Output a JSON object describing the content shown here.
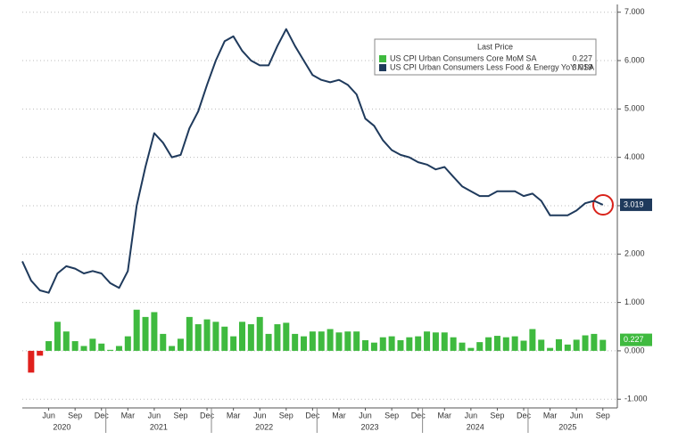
{
  "chart_data": {
    "type": "combo",
    "legend_title": "Last Price",
    "categories": [
      null,
      null,
      null,
      "Jun",
      null,
      null,
      "Sep",
      null,
      null,
      "Dec",
      null,
      null,
      "Mar",
      null,
      null,
      "Jun",
      null,
      null,
      "Sep",
      null,
      null,
      "Dec",
      null,
      null,
      "Mar",
      null,
      null,
      "Jun",
      null,
      null,
      "Sep",
      null,
      null,
      "Dec",
      null,
      null,
      "Mar",
      null,
      null,
      "Jun",
      null,
      null,
      "Sep",
      null,
      null,
      "Dec",
      null,
      null,
      "Mar",
      null,
      null,
      "Jun",
      null,
      null,
      "Sep",
      null,
      null,
      "Dec",
      null,
      null,
      "Mar",
      null,
      null,
      "Jun",
      null,
      null,
      "Sep"
    ],
    "years": [
      "2020",
      "2021",
      "2022",
      "2023",
      "2024",
      "2025"
    ],
    "series": [
      {
        "name": "US CPI Urban Consumers Core MoM SA",
        "type": "bar",
        "color": "#3fba3f",
        "negative_color": "#e0201c",
        "values": [
          null,
          -0.45,
          -0.1,
          0.2,
          0.6,
          0.4,
          0.2,
          0.1,
          0.25,
          0.15,
          0.02,
          0.1,
          0.3,
          0.85,
          0.7,
          0.8,
          0.35,
          0.1,
          0.25,
          0.7,
          0.55,
          0.65,
          0.6,
          0.5,
          0.3,
          0.6,
          0.55,
          0.7,
          0.35,
          0.55,
          0.58,
          0.35,
          0.3,
          0.4,
          0.4,
          0.45,
          0.38,
          0.4,
          0.4,
          0.22,
          0.17,
          0.28,
          0.3,
          0.22,
          0.28,
          0.3,
          0.4,
          0.38,
          0.38,
          0.28,
          0.17,
          0.06,
          0.18,
          0.28,
          0.31,
          0.28,
          0.3,
          0.21,
          0.45,
          0.23,
          0.06,
          0.24,
          0.13,
          0.23,
          0.32,
          0.35,
          0.227
        ]
      },
      {
        "name": "US CPI Urban Consumers Less Food & Energy YoY NSA",
        "type": "line",
        "color": "#1f3a5c",
        "values": [
          1.85,
          1.45,
          1.25,
          1.2,
          1.6,
          1.75,
          1.7,
          1.6,
          1.65,
          1.6,
          1.4,
          1.3,
          1.65,
          3.0,
          3.8,
          4.5,
          4.3,
          4.0,
          4.05,
          4.6,
          4.95,
          5.5,
          6.0,
          6.4,
          6.5,
          6.2,
          6.0,
          5.9,
          5.9,
          6.3,
          6.65,
          6.3,
          6.0,
          5.7,
          5.6,
          5.55,
          5.6,
          5.5,
          5.3,
          4.8,
          4.65,
          4.35,
          4.15,
          4.05,
          4.0,
          3.9,
          3.85,
          3.75,
          3.8,
          3.6,
          3.4,
          3.3,
          3.2,
          3.2,
          3.3,
          3.3,
          3.3,
          3.2,
          3.25,
          3.1,
          2.8,
          2.8,
          2.8,
          2.9,
          3.05,
          3.1,
          3.019
        ]
      }
    ],
    "ylim": [
      -1.18,
      7.16
    ],
    "yticks": [
      {
        "value": -1,
        "label": "-1.000"
      },
      {
        "value": 0,
        "label": "0.000"
      },
      {
        "value": 1,
        "label": "1.000"
      },
      {
        "value": 2,
        "label": "2.000"
      },
      {
        "value": 3,
        "label": "3.000"
      },
      {
        "value": 4,
        "label": "4.000"
      },
      {
        "value": 5,
        "label": "5.000"
      },
      {
        "value": 6,
        "label": "6.000"
      },
      {
        "value": 7,
        "label": "7.000"
      }
    ],
    "grid": true
  }
}
